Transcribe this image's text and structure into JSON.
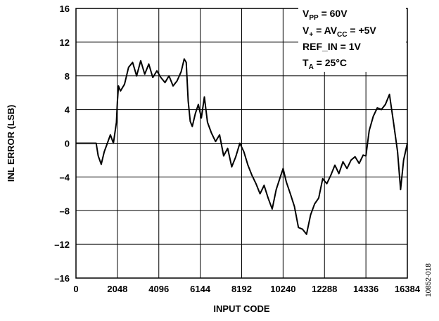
{
  "chart_data": {
    "type": "line",
    "title": "",
    "xlabel": "INPUT CODE",
    "ylabel": "INL ERROR (LSB)",
    "xlim": [
      0,
      16384
    ],
    "ylim": [
      -16,
      16
    ],
    "x_ticks": [
      0,
      2048,
      4096,
      6144,
      8192,
      10240,
      12288,
      14336,
      16384
    ],
    "y_ticks": [
      16,
      12,
      8,
      4,
      0,
      -4,
      -8,
      -12,
      -16
    ],
    "x_tick_labels": [
      "0",
      "2048",
      "4096",
      "6144",
      "8192",
      "10240",
      "12288",
      "14336",
      "16384"
    ],
    "y_tick_labels": [
      "16",
      "12",
      "8",
      "4",
      "0",
      "–4",
      "–8",
      "–12",
      "–16"
    ],
    "grid": true,
    "legend_position": "top-right",
    "conditions": [
      {
        "base": "V",
        "sub": "PP",
        "rest": " = 60V"
      },
      {
        "base": "V",
        "sub": "+",
        "rest": " = AV",
        "sub2": "CC",
        "rest2": " = +5V"
      },
      {
        "base": "REF_IN = 1V",
        "sub": "",
        "rest": ""
      },
      {
        "base": "T",
        "sub": "A",
        "rest": " = 25°C"
      }
    ],
    "figure_id": "10852-018",
    "series": [
      {
        "color": "#000000",
        "x": [
          0,
          1000,
          1100,
          1250,
          1400,
          1550,
          1700,
          1850,
          2000,
          2048,
          2100,
          2200,
          2400,
          2600,
          2800,
          3000,
          3200,
          3400,
          3600,
          3800,
          4000,
          4200,
          4400,
          4600,
          4800,
          5000,
          5200,
          5350,
          5450,
          5550,
          5650,
          5750,
          5900,
          6050,
          6200,
          6350,
          6500,
          6700,
          6900,
          7100,
          7300,
          7500,
          7700,
          7900,
          8100,
          8300,
          8500,
          8700,
          8900,
          9100,
          9300,
          9500,
          9700,
          9900,
          10100,
          10240,
          10400,
          10600,
          10800,
          11000,
          11200,
          11400,
          11600,
          11800,
          12000,
          12200,
          12400,
          12600,
          12800,
          13000,
          13200,
          13400,
          13600,
          13800,
          14000,
          14200,
          14336,
          14500,
          14700,
          14900,
          15100,
          15300,
          15500,
          15700,
          15900,
          16050,
          16200,
          16384
        ],
        "y": [
          0,
          0,
          -1.5,
          -2.5,
          -1.0,
          0.0,
          1.0,
          0.0,
          2.5,
          5.0,
          6.8,
          6.2,
          7.0,
          9.0,
          9.6,
          8.0,
          9.8,
          8.2,
          9.4,
          7.8,
          8.6,
          7.8,
          7.2,
          8.0,
          6.8,
          7.4,
          8.5,
          10.0,
          9.6,
          5.0,
          2.6,
          2.0,
          3.5,
          4.6,
          3.0,
          5.5,
          2.5,
          1.2,
          0.2,
          1.0,
          -1.5,
          -0.6,
          -2.8,
          -1.6,
          0.0,
          -1.0,
          -2.6,
          -3.8,
          -4.8,
          -6.0,
          -5.0,
          -6.5,
          -7.8,
          -5.5,
          -4.0,
          -3.0,
          -4.6,
          -6.0,
          -7.5,
          -10.0,
          -10.2,
          -10.8,
          -8.5,
          -7.2,
          -6.5,
          -4.2,
          -4.8,
          -3.8,
          -2.6,
          -3.6,
          -2.2,
          -3.0,
          -2.0,
          -1.6,
          -2.4,
          -1.4,
          -1.5,
          1.5,
          3.2,
          4.2,
          4.0,
          4.6,
          5.8,
          2.5,
          -1.0,
          -5.5,
          -2.0,
          0.0
        ]
      }
    ]
  }
}
